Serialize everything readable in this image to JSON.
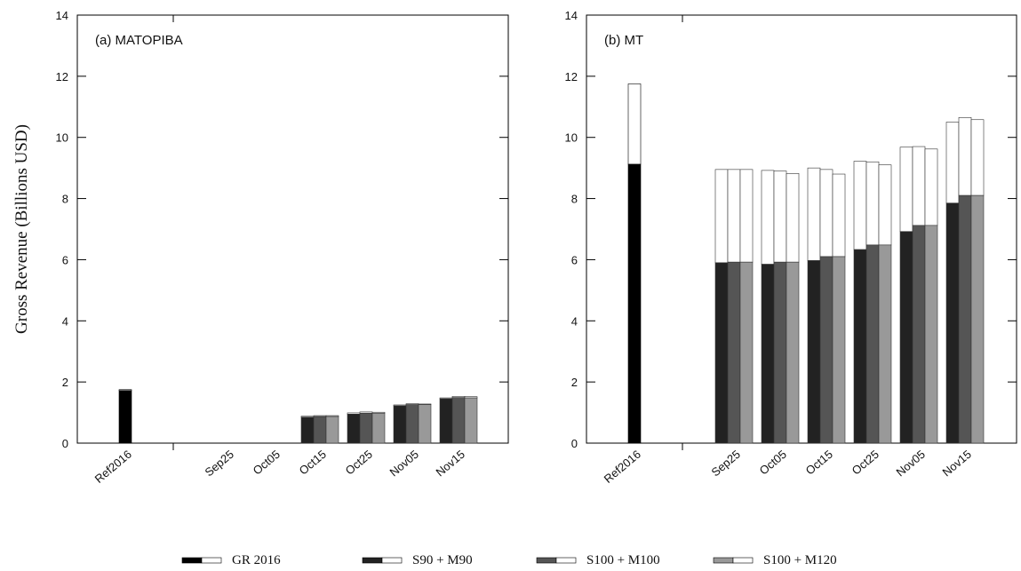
{
  "chart_data": {
    "type": "bar",
    "ylabel": "Gross  Revenue (Billions USD)",
    "ylim": [
      0,
      14
    ],
    "yticks": [
      0,
      2,
      4,
      6,
      8,
      10,
      12,
      14
    ],
    "categories": [
      "Ref2016",
      "Sep25",
      "Oct05",
      "Oct15",
      "Oct25",
      "Nov05",
      "Nov15"
    ],
    "legend": {
      "placement": "bottom",
      "entries": [
        {
          "name": "GR 2016",
          "color": "#000000"
        },
        {
          "name": "S90 + M90",
          "color": "#222222"
        },
        {
          "name": "S100 + M100",
          "color": "#555555"
        },
        {
          "name": "S100 + M120",
          "color": "#999999"
        }
      ]
    },
    "colors": {
      "ref": "#000000",
      "s90": "#222222",
      "s100m100": "#555555",
      "s100m120": "#999999",
      "upper": "#ffffff"
    },
    "panels": [
      {
        "title": "(a) MATOPIBA",
        "ref": {
          "lower": 1.72,
          "total": 1.75
        },
        "series": [
          {
            "name": "S90 + M90",
            "lower": [
              0,
              0,
              0.85,
              0.95,
              1.22,
              1.45
            ],
            "total": [
              0,
              0,
              0.88,
              0.99,
              1.25,
              1.48
            ]
          },
          {
            "name": "S100 + M100",
            "lower": [
              0,
              0,
              0.87,
              0.98,
              1.26,
              1.49
            ],
            "total": [
              0,
              0,
              0.9,
              1.02,
              1.29,
              1.53
            ]
          },
          {
            "name": "S100 + M120",
            "lower": [
              0,
              0,
              0.87,
              0.98,
              1.26,
              1.48
            ],
            "total": [
              0,
              0,
              0.9,
              1.01,
              1.28,
              1.52
            ]
          }
        ]
      },
      {
        "title": "(b) MT",
        "ref": {
          "lower": 9.12,
          "total": 11.75
        },
        "series": [
          {
            "name": "S90 + M90",
            "lower": [
              5.9,
              5.85,
              5.97,
              6.33,
              6.92,
              7.85
            ],
            "total": [
              8.95,
              8.92,
              9.0,
              9.22,
              9.68,
              10.5
            ]
          },
          {
            "name": "S100 + M100",
            "lower": [
              5.92,
              5.92,
              6.1,
              6.48,
              7.12,
              8.1
            ],
            "total": [
              8.95,
              8.9,
              8.95,
              9.2,
              9.7,
              10.65
            ]
          },
          {
            "name": "S100 + M120",
            "lower": [
              5.92,
              5.92,
              6.1,
              6.48,
              7.12,
              8.1
            ],
            "total": [
              8.95,
              8.82,
              8.8,
              9.1,
              9.62,
              10.58
            ]
          }
        ]
      }
    ]
  }
}
